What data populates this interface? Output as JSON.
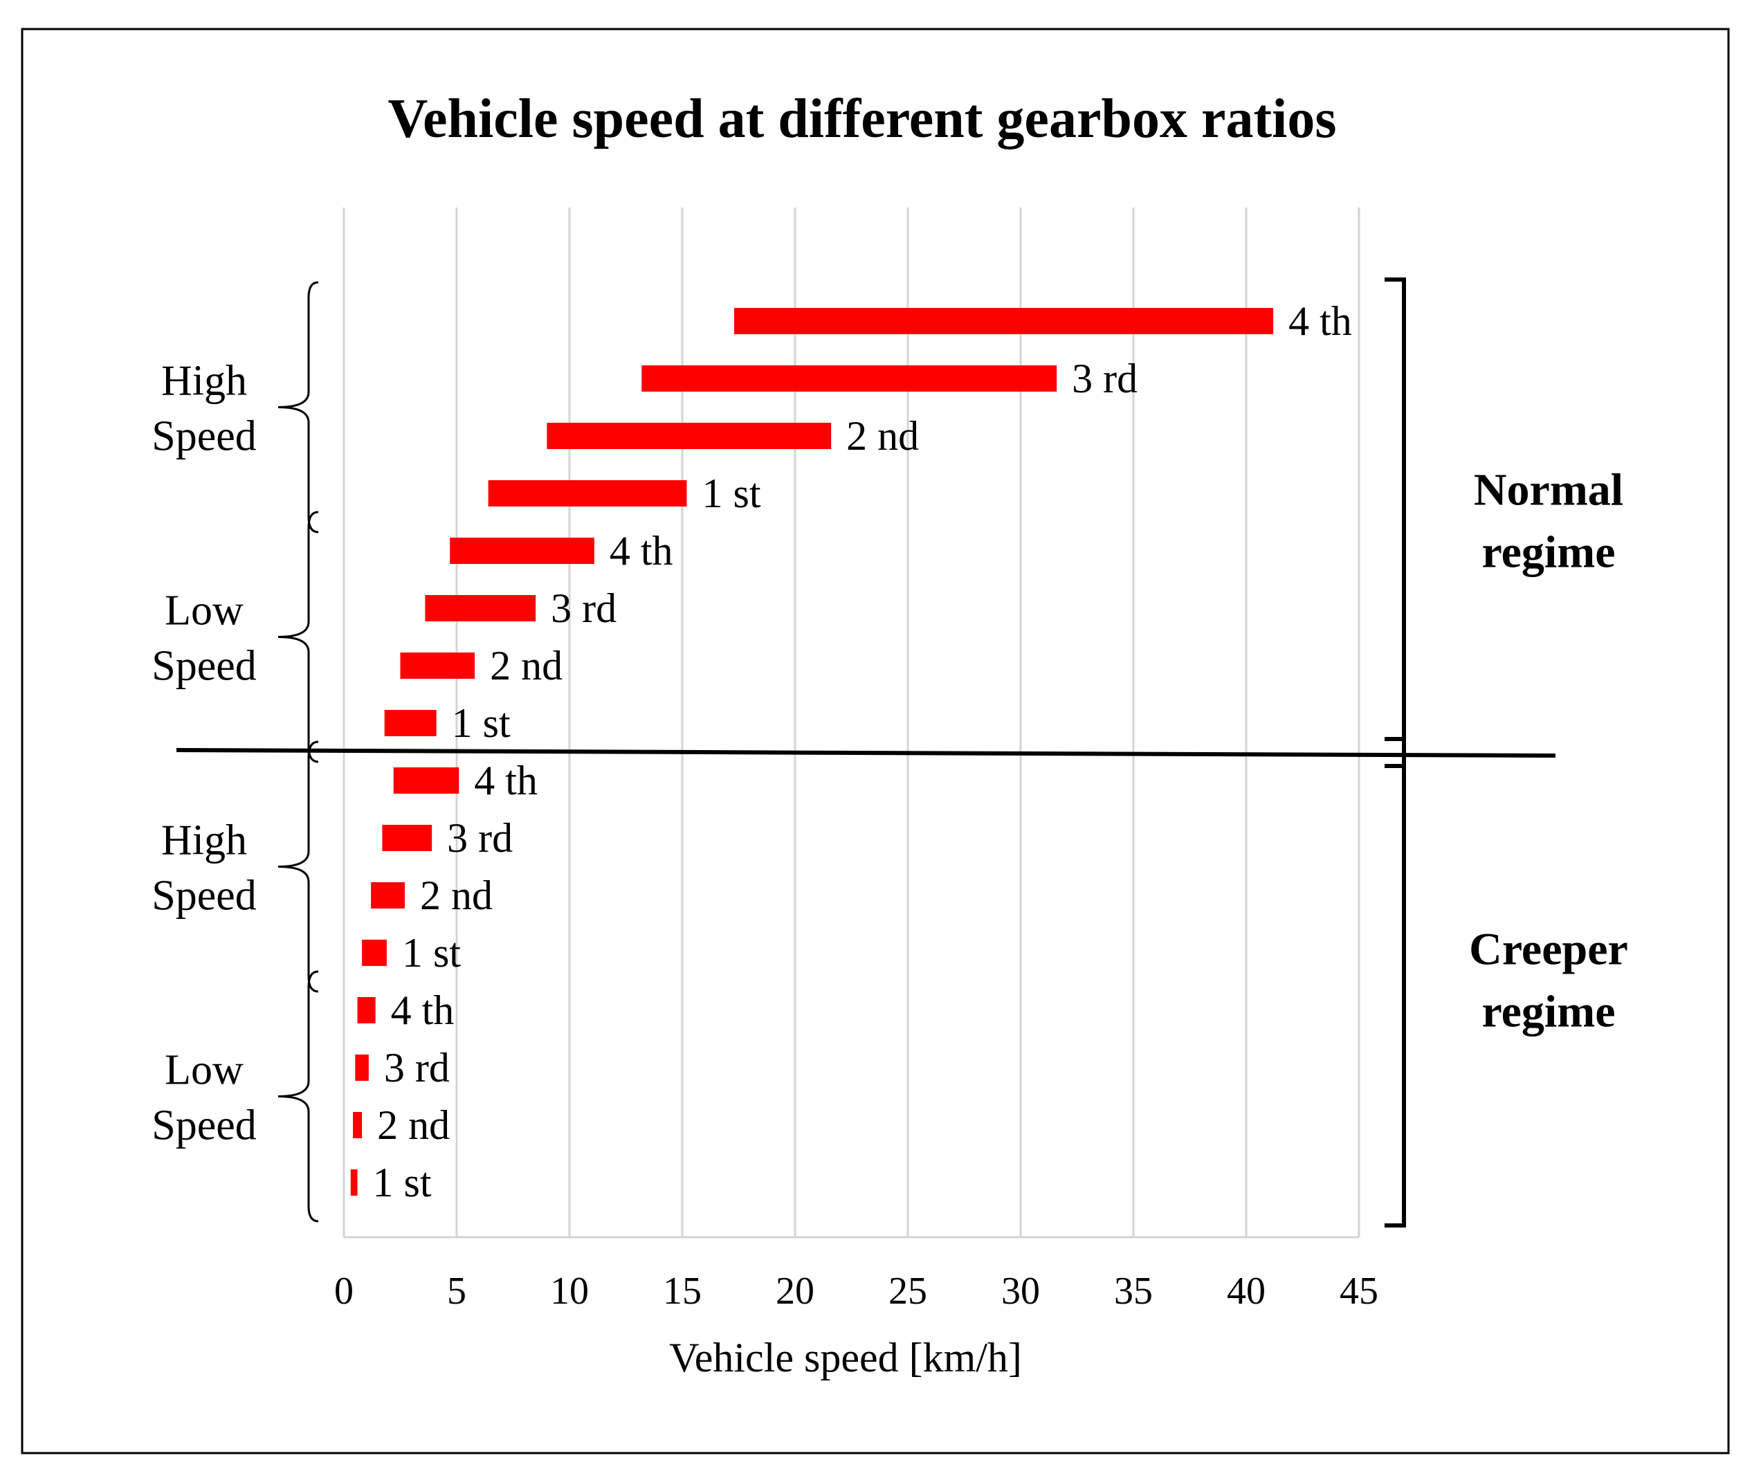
{
  "chart_data": {
    "type": "bar",
    "subtype": "floating-horizontal-range",
    "title": "Vehicle speed at different gearbox ratios",
    "xlabel": "Vehicle speed [km/h]",
    "ylabel": "",
    "xlim": [
      0,
      45
    ],
    "x_ticks": [
      "0",
      "5",
      "10",
      "15",
      "20",
      "25",
      "30",
      "35",
      "40",
      "45"
    ],
    "grid": "vertical",
    "color": "#ff0000",
    "series": [
      {
        "name": "Normal regime / High Speed / 4 th",
        "label": "4 th",
        "start": 17.3,
        "end": 41.2
      },
      {
        "name": "Normal regime / High Speed / 3 rd",
        "label": "3 rd",
        "start": 13.2,
        "end": 31.6
      },
      {
        "name": "Normal regime / High Speed / 2 nd",
        "label": "2 nd",
        "start": 9.0,
        "end": 21.6
      },
      {
        "name": "Normal regime / High Speed / 1 st",
        "label": "1 st",
        "start": 6.4,
        "end": 15.2
      },
      {
        "name": "Normal regime / Low Speed / 4 th",
        "label": "4 th",
        "start": 4.7,
        "end": 11.1
      },
      {
        "name": "Normal regime / Low Speed / 3 rd",
        "label": "3 rd",
        "start": 3.6,
        "end": 8.5
      },
      {
        "name": "Normal regime / Low Speed / 2 nd",
        "label": "2 nd",
        "start": 2.5,
        "end": 5.8
      },
      {
        "name": "Normal regime / Low Speed / 1 st",
        "label": "1 st",
        "start": 1.8,
        "end": 4.1
      },
      {
        "name": "Creeper regime / High Speed / 4 th",
        "label": "4 th",
        "start": 2.2,
        "end": 5.1
      },
      {
        "name": "Creeper regime / High Speed / 3 rd",
        "label": "3 rd",
        "start": 1.7,
        "end": 3.9
      },
      {
        "name": "Creeper regime / High Speed / 2 nd",
        "label": "2 nd",
        "start": 1.2,
        "end": 2.7
      },
      {
        "name": "Creeper regime / High Speed / 1 st",
        "label": "1 st",
        "start": 0.8,
        "end": 1.9
      },
      {
        "name": "Creeper regime / Low Speed / 4 th",
        "label": "4 th",
        "start": 0.6,
        "end": 1.4
      },
      {
        "name": "Creeper regime / Low Speed / 3 rd",
        "label": "3 rd",
        "start": 0.5,
        "end": 1.1
      },
      {
        "name": "Creeper regime / Low Speed / 2 nd",
        "label": "2 nd",
        "start": 0.4,
        "end": 0.8
      },
      {
        "name": "Creeper regime / Low Speed / 1 st",
        "label": "1 st",
        "start": 0.3,
        "end": 0.6
      }
    ],
    "groups": [
      {
        "label": "High Speed",
        "lines": [
          "High",
          "Speed"
        ],
        "rows": [
          0,
          3
        ]
      },
      {
        "label": "Low Speed",
        "lines": [
          "Low",
          "Speed"
        ],
        "rows": [
          4,
          7
        ]
      },
      {
        "label": "High Speed",
        "lines": [
          "High",
          "Speed"
        ],
        "rows": [
          8,
          11
        ]
      },
      {
        "label": "Low Speed",
        "lines": [
          "Low",
          "Speed"
        ],
        "rows": [
          12,
          15
        ]
      }
    ],
    "regimes": [
      {
        "label": "Normal regime",
        "lines": [
          "Normal",
          "regime"
        ],
        "rows": [
          0,
          7
        ]
      },
      {
        "label": "Creeper regime",
        "lines": [
          "Creeper",
          "regime"
        ],
        "rows": [
          8,
          15
        ]
      }
    ]
  }
}
